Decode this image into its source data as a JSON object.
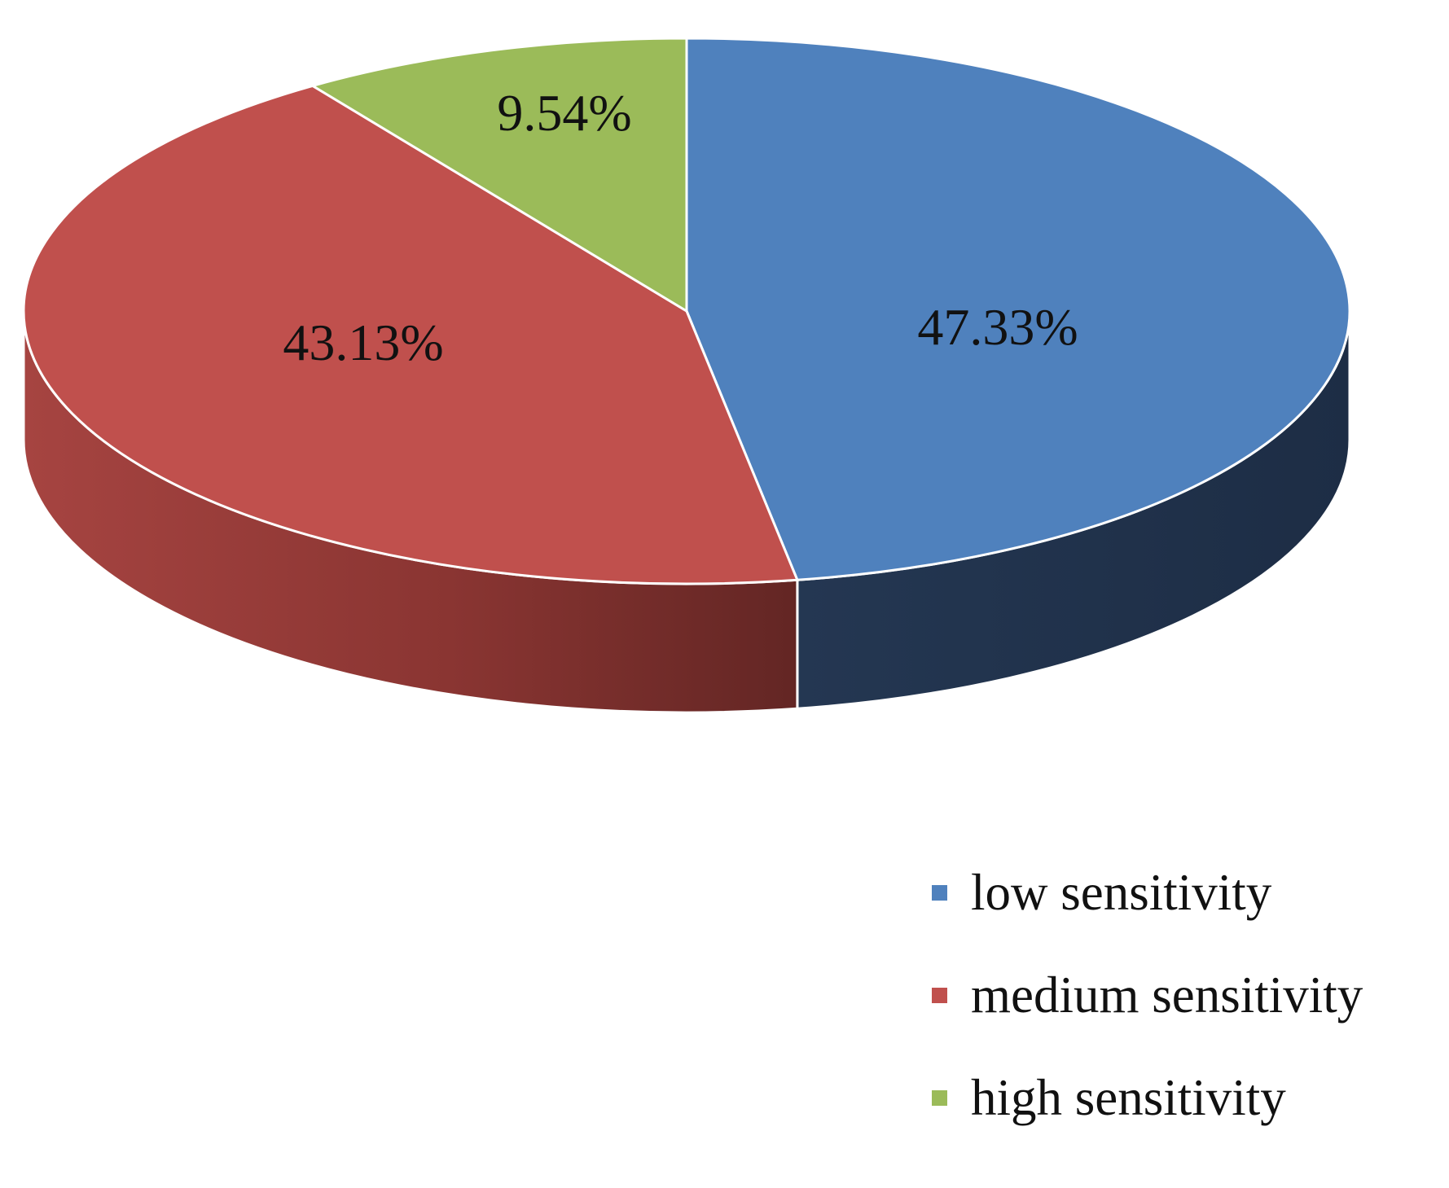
{
  "chart_data": {
    "type": "pie",
    "style": "3d",
    "slices": [
      {
        "label": "low sensitivity",
        "value": 47.33,
        "value_text": "47.33%",
        "color": "#4f81bd",
        "side_color": "#22334f"
      },
      {
        "label": "medium sensitivity",
        "value": 43.13,
        "value_text": "43.13%",
        "color": "#c0504d",
        "side_color": "#8a3330"
      },
      {
        "label": "high sensitivity",
        "value": 9.54,
        "value_text": "9.54%",
        "color": "#9bbb59",
        "side_color": "#6f8a3f"
      }
    ],
    "start": "top, clockwise",
    "legend_position": "bottom-right"
  }
}
